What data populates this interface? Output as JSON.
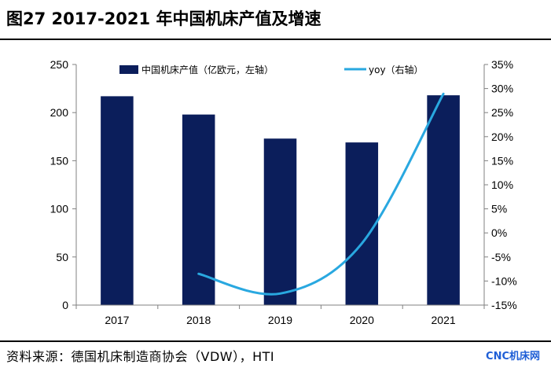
{
  "header": {
    "title": "图27 2017-2021 年中国机床产值及增速"
  },
  "footer": {
    "source": "资料来源：德国机床制造商协会（VDW），HTI",
    "watermark": "CNC机床网"
  },
  "colors": {
    "bar": "#0b1e5b",
    "line": "#29a8e0",
    "axis": "#808080",
    "watermark": "#1f5fd6"
  },
  "chart_data": {
    "type": "bar",
    "categories": [
      "2017",
      "2018",
      "2019",
      "2020",
      "2021"
    ],
    "series": [
      {
        "name": "中国机床产值（亿欧元，左轴）",
        "type": "bar",
        "axis": "left",
        "values": [
          217,
          198,
          173,
          169,
          218
        ]
      },
      {
        "name": "yoy（右轴）",
        "type": "line",
        "axis": "right",
        "smooth": true,
        "values": [
          null,
          -8.5,
          -12.6,
          -2.2,
          28.9
        ]
      }
    ],
    "y_left": {
      "min": 0,
      "max": 250,
      "step": 50,
      "ticks": [
        "0",
        "50",
        "100",
        "150",
        "200",
        "250"
      ]
    },
    "y_right": {
      "min": -15,
      "max": 35,
      "step": 5,
      "ticks": [
        "-15%",
        "-10%",
        "-5%",
        "0%",
        "5%",
        "10%",
        "15%",
        "20%",
        "25%",
        "30%",
        "35%"
      ]
    },
    "grid": false,
    "legend_position": "top"
  }
}
